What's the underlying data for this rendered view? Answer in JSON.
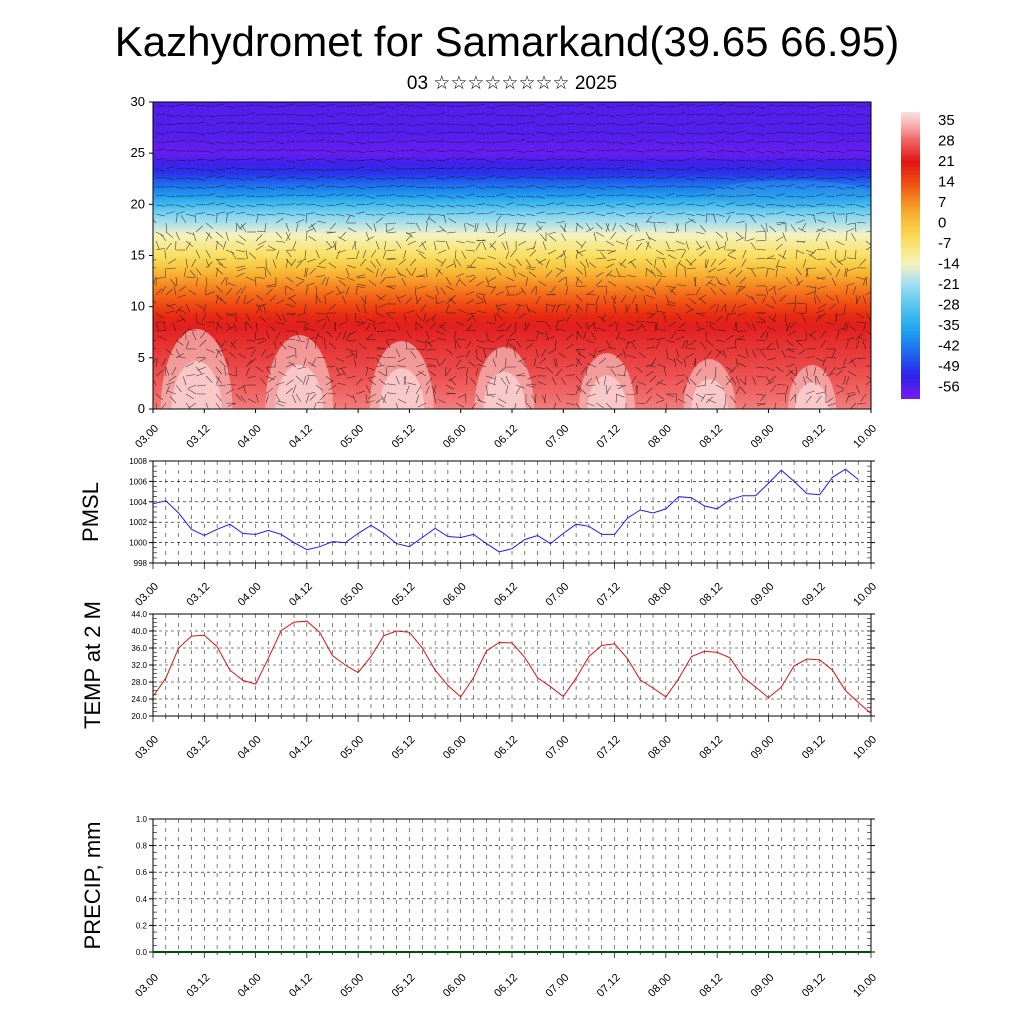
{
  "header": {
    "title": "Kazhydromet for Samarkand(39.65 66.95)",
    "subtitle": "03 ☆☆☆☆☆☆☆☆ 2025"
  },
  "colors": {
    "pmsl_line": "#1a1aff",
    "temp_line": "#e01010",
    "precip_line": "#005000"
  },
  "chart_data": [
    {
      "type": "heatmap",
      "name": "cross-section",
      "title": "",
      "xlabel": "",
      "ylabel": "",
      "x_ticks": [
        "03.00",
        "03.12",
        "04.00",
        "04.12",
        "05.00",
        "05.12",
        "06.00",
        "06.12",
        "07.00",
        "07.12",
        "08.00",
        "08.12",
        "09.00",
        "09.12",
        "10.00"
      ],
      "y_ticks": [
        "0",
        "5",
        "10",
        "15",
        "20",
        "25",
        "30"
      ],
      "ylim": [
        0,
        30
      ],
      "colorbar": {
        "labels": [
          "35",
          "28",
          "21",
          "14",
          "7",
          "0",
          "-7",
          "-14",
          "-21",
          "-28",
          "-35",
          "-42",
          "-49",
          "-56"
        ],
        "range": [
          -60,
          38
        ]
      },
      "level_profile": [
        {
          "level": 0,
          "value": 30
        },
        {
          "level": 2,
          "value": 28
        },
        {
          "level": 8,
          "value": 22
        },
        {
          "level": 12,
          "value": 8
        },
        {
          "level": 15,
          "value": -6
        },
        {
          "level": 17,
          "value": -14
        },
        {
          "level": 19,
          "value": -24
        },
        {
          "level": 21,
          "value": -38
        },
        {
          "level": 23,
          "value": -50
        },
        {
          "level": 25,
          "value": -58
        },
        {
          "level": 27,
          "value": -56
        },
        {
          "level": 30,
          "value": -56
        }
      ],
      "vectors": "wind barbs overlay"
    },
    {
      "type": "line",
      "name": "pmsl",
      "ylabel": "PMSL",
      "ylim": [
        998,
        1008
      ],
      "y_ticks": [
        "998",
        "1000",
        "1002",
        "1004",
        "1006",
        "1008"
      ],
      "x_ticks": [
        "03.00",
        "03.12",
        "04.00",
        "04.12",
        "05.00",
        "05.12",
        "06.00",
        "06.12",
        "07.00",
        "07.12",
        "08.00",
        "08.12",
        "09.00",
        "09.12",
        "10.00"
      ],
      "x": [
        0,
        3,
        6,
        9,
        12,
        15,
        18,
        21,
        24,
        27,
        30,
        33,
        36,
        39,
        42,
        45,
        48,
        51,
        54,
        57,
        60,
        63,
        66,
        69,
        72,
        75,
        78,
        81,
        84,
        87,
        90,
        93,
        96,
        99,
        102,
        105,
        108,
        111,
        114,
        117,
        120,
        123,
        126,
        129,
        132,
        135,
        138,
        141,
        144,
        147,
        150,
        153,
        156,
        159,
        162,
        165
      ],
      "series": [
        {
          "values": [
            1003.8,
            1004.1,
            1002.9,
            1001.3,
            1000.7,
            1001.3,
            1001.8,
            1000.9,
            1000.8,
            1001.2,
            1000.8,
            1000.0,
            999.3,
            999.6,
            1000.1,
            1000.0,
            1000.9,
            1001.7,
            1000.9,
            999.9,
            999.6,
            1000.5,
            1001.4,
            1000.6,
            1000.5,
            1000.8,
            999.9,
            999.1,
            999.4,
            1000.3,
            1000.7,
            999.9,
            1000.9,
            1001.8,
            1001.6,
            1000.8,
            1000.8,
            1002.4,
            1003.2,
            1002.9,
            1003.3,
            1004.5,
            1004.4,
            1003.6,
            1003.3,
            1004.2,
            1004.6,
            1004.6,
            1005.8,
            1007.1,
            1006.0,
            1004.8,
            1004.7,
            1006.4,
            1007.2,
            1006.2
          ]
        }
      ]
    },
    {
      "type": "line",
      "name": "temp",
      "ylabel": "TEMP at 2 M",
      "ylim": [
        20,
        44
      ],
      "y_ticks": [
        "20.0",
        "24.0",
        "28.0",
        "32.0",
        "36.0",
        "40.0",
        "44.0"
      ],
      "x_ticks": [
        "03.00",
        "03.12",
        "04.00",
        "04.12",
        "05.00",
        "05.12",
        "06.00",
        "06.12",
        "07.00",
        "07.12",
        "08.00",
        "08.12",
        "09.00",
        "09.12",
        "10.00"
      ],
      "x": [
        0,
        3,
        6,
        9,
        12,
        15,
        18,
        21,
        24,
        27,
        30,
        33,
        36,
        39,
        42,
        45,
        48,
        51,
        54,
        57,
        60,
        63,
        66,
        69,
        72,
        75,
        78,
        81,
        84,
        87,
        90,
        93,
        96,
        99,
        102,
        105,
        108,
        111,
        114,
        117,
        120,
        123,
        126,
        129,
        132,
        135,
        138,
        141,
        144,
        147,
        150,
        153,
        156,
        159,
        162,
        165,
        168
      ],
      "series": [
        {
          "values": [
            24.6,
            28.9,
            36.0,
            38.8,
            39.0,
            36.3,
            30.8,
            28.4,
            27.5,
            33.6,
            40.1,
            42.1,
            42.3,
            39.7,
            34.2,
            32.0,
            30.2,
            34.0,
            38.9,
            40.0,
            39.7,
            36.0,
            30.8,
            27.2,
            24.5,
            29.0,
            35.3,
            37.3,
            37.2,
            33.8,
            29.0,
            26.9,
            24.6,
            28.9,
            34.0,
            36.6,
            37.0,
            33.5,
            28.5,
            26.6,
            24.5,
            28.8,
            34.0,
            35.2,
            35.0,
            33.7,
            29.2,
            26.8,
            24.3,
            26.8,
            31.8,
            33.4,
            33.2,
            30.8,
            26.0,
            23.2,
            20.6
          ]
        }
      ]
    },
    {
      "type": "line",
      "name": "precip",
      "ylabel": "PRECIP, mm",
      "ylim": [
        0,
        1
      ],
      "y_ticks": [
        "0.0",
        "0.2",
        "0.4",
        "0.6",
        "0.8",
        "1.0"
      ],
      "x_ticks": [
        "03.00",
        "03.12",
        "04.00",
        "04.12",
        "05.00",
        "05.12",
        "06.00",
        "06.12",
        "07.00",
        "07.12",
        "08.00",
        "08.12",
        "09.00",
        "09.12",
        "10.00"
      ],
      "x": [
        0,
        168
      ],
      "series": [
        {
          "values": [
            0,
            0
          ]
        }
      ]
    }
  ]
}
